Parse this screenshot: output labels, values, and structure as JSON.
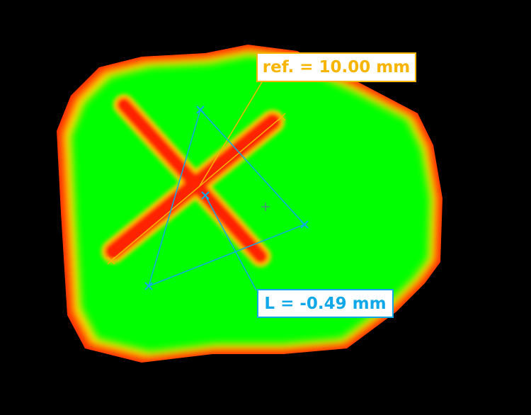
{
  "measurement": {
    "reference_label": "ref. = 10.00 mm",
    "length_label": "L = -0.49 mm"
  },
  "colors": {
    "background": "#000000",
    "surface_nominal": "#00ff00",
    "surface_deviation_high": "#ff0000",
    "surface_deviation_mid": "#ffff00",
    "reference_line": "#f7b500",
    "measurement_line": "#10a8e8"
  },
  "icons": [
    "cross-marker-icon",
    "plus-marker-icon"
  ]
}
